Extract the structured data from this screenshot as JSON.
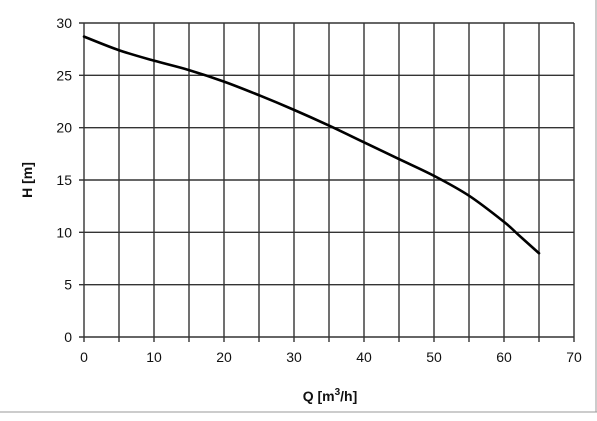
{
  "chart_data": {
    "type": "line",
    "xlabel": {
      "prefix": "Q [m",
      "sup": "3",
      "suffix": "/h]"
    },
    "ylabel": "H [m]",
    "xlim": [
      0,
      70
    ],
    "ylim": [
      0,
      30
    ],
    "x_ticks": [
      0,
      10,
      20,
      30,
      40,
      50,
      60,
      70
    ],
    "y_ticks": [
      0,
      5,
      10,
      15,
      20,
      25,
      30
    ],
    "x_gridlines": [
      0,
      5,
      10,
      15,
      20,
      25,
      30,
      35,
      40,
      45,
      50,
      55,
      60,
      65,
      70
    ],
    "y_gridlines": [
      0,
      5,
      10,
      15,
      20,
      25,
      30
    ],
    "grid": true,
    "legend": "none",
    "series": [
      {
        "x": [
          0,
          5,
          10,
          15,
          20,
          25,
          30,
          35,
          40,
          45,
          50,
          55,
          60,
          62,
          64,
          65
        ],
        "y": [
          28.7,
          27.4,
          26.4,
          25.5,
          24.4,
          23.1,
          21.7,
          20.2,
          18.6,
          17.0,
          15.4,
          13.5,
          11.0,
          9.8,
          8.6,
          8.0
        ],
        "color": "#000000"
      }
    ]
  }
}
